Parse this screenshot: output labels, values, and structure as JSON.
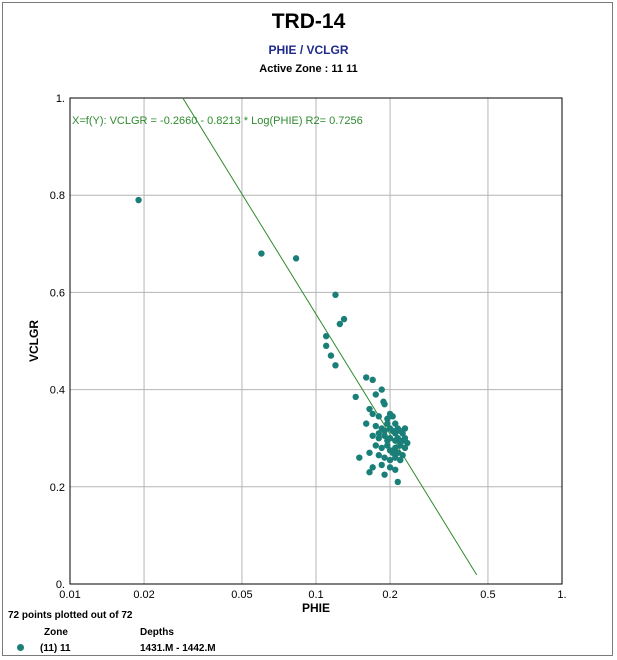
{
  "header": {
    "title": "TRD-14",
    "subtitle": "PHIE / VCLGR",
    "active_zone": "Active Zone : 11 11"
  },
  "footer": {
    "points_text": "72 points plotted out of 72",
    "zone_header": "Zone",
    "depths_header": "Depths",
    "zone_value": "(11) 11",
    "depths_value": "1431.M - 1442.M"
  },
  "colors": {
    "points": "#1a7f78",
    "regression": "#2e8b2e",
    "grid": "#b5b5b5",
    "equation": "#2e8b2e"
  },
  "chart_data": {
    "type": "scatter",
    "xlabel": "PHIE",
    "ylabel": "VCLGR",
    "x_scale": "log",
    "xlim": [
      0.01,
      1.0
    ],
    "ylim": [
      0.0,
      1.0
    ],
    "x_ticks": [
      {
        "value": 0.01,
        "label": "0.01"
      },
      {
        "value": 0.02,
        "label": "0.02"
      },
      {
        "value": 0.05,
        "label": "0.05"
      },
      {
        "value": 0.1,
        "label": "0.1"
      },
      {
        "value": 0.2,
        "label": "0.2"
      },
      {
        "value": 0.5,
        "label": "0.5"
      },
      {
        "value": 1.0,
        "label": "1."
      }
    ],
    "y_ticks": [
      {
        "value": 0.0,
        "label": "0."
      },
      {
        "value": 0.2,
        "label": "0.2"
      },
      {
        "value": 0.4,
        "label": "0.4"
      },
      {
        "value": 0.6,
        "label": "0.6"
      },
      {
        "value": 0.8,
        "label": "0.8"
      },
      {
        "value": 1.0,
        "label": "1."
      }
    ],
    "grid": true,
    "regression": {
      "equation": "X=f(Y): VCLGR = -0.2660 - 0.8213 * Log(PHIE)   R2= 0.7256",
      "intercept": -0.266,
      "slope": -0.8213
    },
    "series": [
      {
        "name": "(11) 11",
        "points": [
          [
            0.019,
            0.79
          ],
          [
            0.06,
            0.68
          ],
          [
            0.083,
            0.67
          ],
          [
            0.12,
            0.595
          ],
          [
            0.13,
            0.545
          ],
          [
            0.125,
            0.535
          ],
          [
            0.11,
            0.51
          ],
          [
            0.11,
            0.49
          ],
          [
            0.115,
            0.47
          ],
          [
            0.12,
            0.45
          ],
          [
            0.145,
            0.385
          ],
          [
            0.16,
            0.425
          ],
          [
            0.17,
            0.42
          ],
          [
            0.175,
            0.39
          ],
          [
            0.185,
            0.4
          ],
          [
            0.188,
            0.375
          ],
          [
            0.19,
            0.37
          ],
          [
            0.165,
            0.36
          ],
          [
            0.17,
            0.35
          ],
          [
            0.18,
            0.345
          ],
          [
            0.195,
            0.34
          ],
          [
            0.2,
            0.35
          ],
          [
            0.205,
            0.345
          ],
          [
            0.21,
            0.33
          ],
          [
            0.16,
            0.33
          ],
          [
            0.175,
            0.325
          ],
          [
            0.185,
            0.32
          ],
          [
            0.19,
            0.315
          ],
          [
            0.2,
            0.32
          ],
          [
            0.205,
            0.315
          ],
          [
            0.21,
            0.31
          ],
          [
            0.215,
            0.32
          ],
          [
            0.22,
            0.315
          ],
          [
            0.225,
            0.31
          ],
          [
            0.23,
            0.32
          ],
          [
            0.17,
            0.305
          ],
          [
            0.18,
            0.3
          ],
          [
            0.19,
            0.305
          ],
          [
            0.195,
            0.295
          ],
          [
            0.2,
            0.3
          ],
          [
            0.21,
            0.295
          ],
          [
            0.215,
            0.3
          ],
          [
            0.22,
            0.29
          ],
          [
            0.225,
            0.295
          ],
          [
            0.23,
            0.3
          ],
          [
            0.175,
            0.285
          ],
          [
            0.185,
            0.28
          ],
          [
            0.195,
            0.285
          ],
          [
            0.2,
            0.275
          ],
          [
            0.21,
            0.28
          ],
          [
            0.215,
            0.27
          ],
          [
            0.22,
            0.285
          ],
          [
            0.23,
            0.28
          ],
          [
            0.165,
            0.27
          ],
          [
            0.18,
            0.265
          ],
          [
            0.19,
            0.26
          ],
          [
            0.2,
            0.255
          ],
          [
            0.21,
            0.26
          ],
          [
            0.22,
            0.255
          ],
          [
            0.15,
            0.26
          ],
          [
            0.17,
            0.24
          ],
          [
            0.185,
            0.245
          ],
          [
            0.2,
            0.24
          ],
          [
            0.21,
            0.235
          ],
          [
            0.165,
            0.23
          ],
          [
            0.19,
            0.225
          ],
          [
            0.215,
            0.21
          ],
          [
            0.205,
            0.27
          ],
          [
            0.225,
            0.265
          ],
          [
            0.195,
            0.33
          ],
          [
            0.18,
            0.31
          ],
          [
            0.235,
            0.29
          ]
        ]
      }
    ]
  }
}
